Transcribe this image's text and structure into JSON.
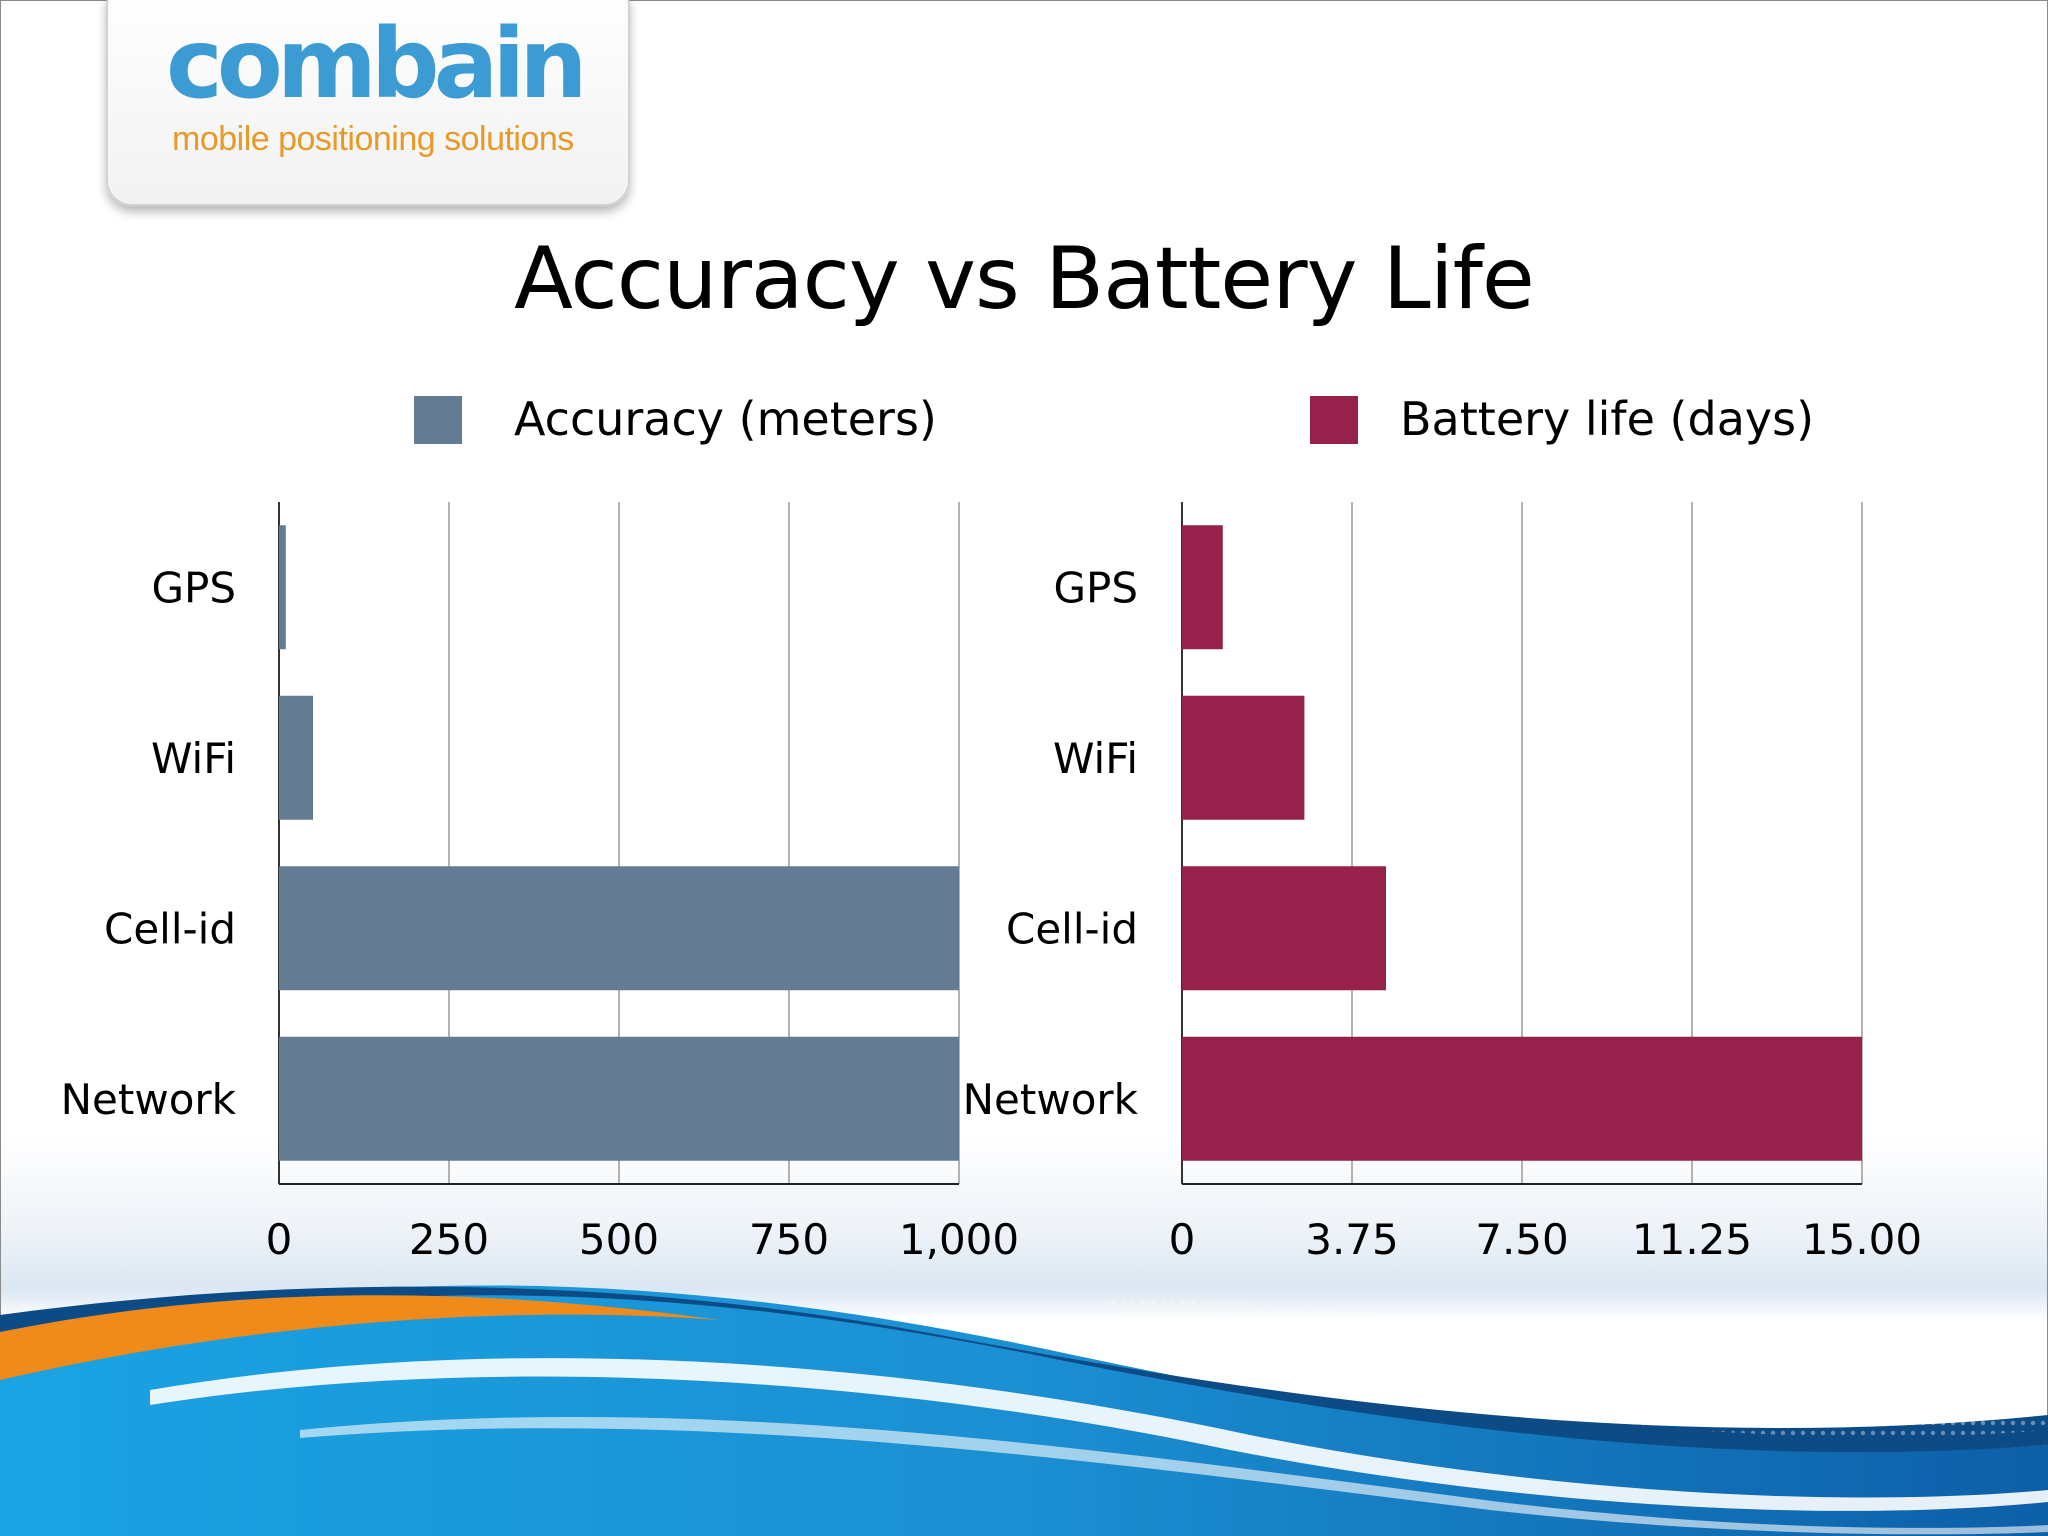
{
  "logo": {
    "wordmark": "combain",
    "tagline": "mobile positioning solutions"
  },
  "title": "Accuracy vs Battery Life",
  "colors": {
    "accuracy_bar": "#647b94",
    "battery_bar": "#96214b",
    "logo_blue": "#3c9bd2",
    "logo_orange": "#e69a2a",
    "wave_dark_blue": "#0d4b86",
    "wave_light_blue": "#1aa3e3",
    "wave_orange": "#f08a1a"
  },
  "legend": [
    {
      "label": "Accuracy (meters)",
      "color": "#647b94"
    },
    {
      "label": "Battery life (days)",
      "color": "#96214b"
    }
  ],
  "chart_data": [
    {
      "type": "bar",
      "orientation": "horizontal",
      "categories": [
        "GPS",
        "WiFi",
        "Cell-id",
        "Network"
      ],
      "series": [
        {
          "name": "Accuracy (meters)",
          "values": [
            10,
            50,
            1000,
            1000
          ]
        }
      ],
      "xlim": [
        0,
        1000
      ],
      "x_ticks": [
        "0",
        "250",
        "500",
        "750",
        "1,000"
      ],
      "grid": "vertical"
    },
    {
      "type": "bar",
      "orientation": "horizontal",
      "categories": [
        "GPS",
        "WiFi",
        "Cell-id",
        "Network"
      ],
      "series": [
        {
          "name": "Battery life (days)",
          "values": [
            0.9,
            2.7,
            4.5,
            15
          ]
        }
      ],
      "xlim": [
        0,
        15
      ],
      "x_ticks": [
        "0",
        "3.75",
        "7.50",
        "11.25",
        "15.00"
      ],
      "grid": "vertical"
    }
  ]
}
